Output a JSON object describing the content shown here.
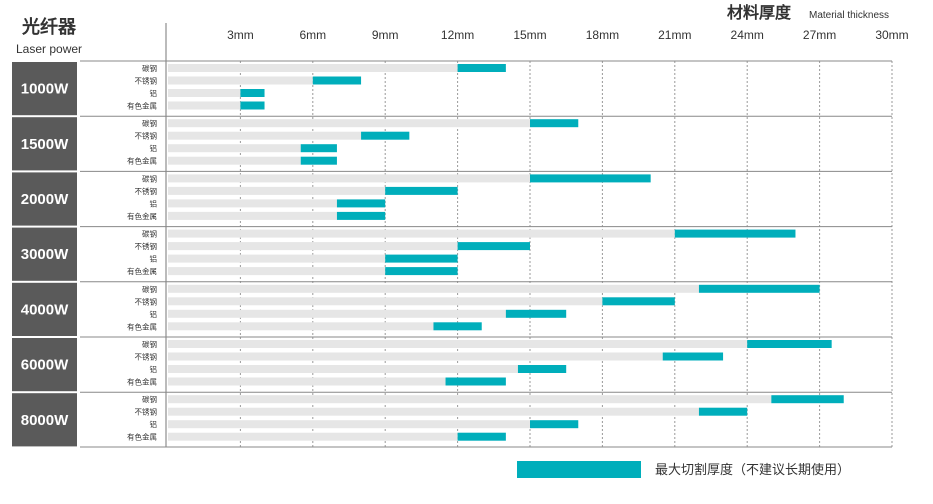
{
  "chart_data": {
    "type": "bar",
    "title_left_cn": "光纤器",
    "title_left_en": "Laser power",
    "title_right_cn": "材料厚度",
    "title_right_en": "Material thickness",
    "x_ticks": [
      "3mm",
      "6mm",
      "9mm",
      "12mm",
      "15mm",
      "18mm",
      "21mm",
      "24mm",
      "27mm",
      "30mm"
    ],
    "xlim": [
      0,
      30
    ],
    "x_unit": "mm",
    "grid": true,
    "materials": [
      "碳钢",
      "不锈钢",
      "铝",
      "有色金属"
    ],
    "legend": {
      "label": "最大切割厚度（不建议长期使用）",
      "placement": "bottom-right"
    },
    "colors": {
      "normal": "#e6e6e6",
      "max": "#00aebb",
      "panel": "#5a5a5a",
      "grid": "#9a9a9a"
    },
    "groups": [
      {
        "power": "1000W",
        "bars": [
          {
            "material": "碳钢",
            "normal": 12,
            "max": 14
          },
          {
            "material": "不锈钢",
            "normal": 6,
            "max": 8
          },
          {
            "material": "铝",
            "normal": 3,
            "max": 4
          },
          {
            "material": "有色金属",
            "normal": 3,
            "max": 4
          }
        ]
      },
      {
        "power": "1500W",
        "bars": [
          {
            "material": "碳钢",
            "normal": 15,
            "max": 17
          },
          {
            "material": "不锈钢",
            "normal": 8,
            "max": 10
          },
          {
            "material": "铝",
            "normal": 5.5,
            "max": 7
          },
          {
            "material": "有色金属",
            "normal": 5.5,
            "max": 7
          }
        ]
      },
      {
        "power": "2000W",
        "bars": [
          {
            "material": "碳钢",
            "normal": 15,
            "max": 20
          },
          {
            "material": "不锈钢",
            "normal": 9,
            "max": 12
          },
          {
            "material": "铝",
            "normal": 7,
            "max": 9
          },
          {
            "material": "有色金属",
            "normal": 7,
            "max": 9
          }
        ]
      },
      {
        "power": "3000W",
        "bars": [
          {
            "material": "碳钢",
            "normal": 21,
            "max": 26
          },
          {
            "material": "不锈钢",
            "normal": 12,
            "max": 15
          },
          {
            "material": "铝",
            "normal": 9,
            "max": 12
          },
          {
            "material": "有色金属",
            "normal": 9,
            "max": 12
          }
        ]
      },
      {
        "power": "4000W",
        "bars": [
          {
            "material": "碳钢",
            "normal": 22,
            "max": 27
          },
          {
            "material": "不锈钢",
            "normal": 18,
            "max": 21
          },
          {
            "material": "铝",
            "normal": 14,
            "max": 16.5
          },
          {
            "material": "有色金属",
            "normal": 11,
            "max": 13
          }
        ]
      },
      {
        "power": "6000W",
        "bars": [
          {
            "material": "碳钢",
            "normal": 24,
            "max": 27.5
          },
          {
            "material": "不锈钢",
            "normal": 20.5,
            "max": 23
          },
          {
            "material": "铝",
            "normal": 14.5,
            "max": 16.5
          },
          {
            "material": "有色金属",
            "normal": 11.5,
            "max": 14
          }
        ]
      },
      {
        "power": "8000W",
        "bars": [
          {
            "material": "碳钢",
            "normal": 25,
            "max": 28
          },
          {
            "material": "不锈钢",
            "normal": 22,
            "max": 24
          },
          {
            "material": "铝",
            "normal": 15,
            "max": 17
          },
          {
            "material": "有色金属",
            "normal": 12,
            "max": 14
          }
        ]
      }
    ]
  }
}
